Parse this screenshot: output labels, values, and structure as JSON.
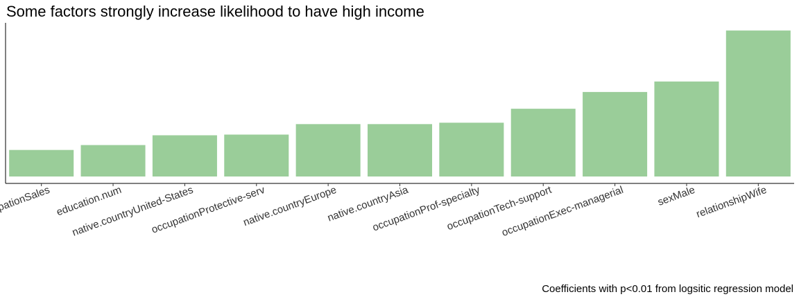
{
  "chart_data": {
    "type": "bar",
    "title": "Some factors strongly increase likelihood to have high income",
    "caption": "Coefficients with p<0.01 from logsitic regression model",
    "xlabel": "",
    "ylabel": "",
    "categories": [
      "occupationSales",
      "education.num",
      "native.countryUnited-States",
      "occupationProtective-serv",
      "native.countryEurope",
      "native.countryAsia",
      "occupationProf-specialty",
      "occupationTech-support",
      "occupationExec-managerial",
      "sexMale",
      "relationshipWife"
    ],
    "values": [
      0.38,
      0.45,
      0.59,
      0.6,
      0.75,
      0.75,
      0.77,
      0.97,
      1.21,
      1.36,
      2.09
    ],
    "ylim": [
      0,
      2.2
    ],
    "y_axis_ticks_shown": false,
    "grid": false,
    "legend": "none",
    "bar_color": "#9ACD99",
    "text_color": "#000000",
    "tick_label_color": "#333333"
  }
}
